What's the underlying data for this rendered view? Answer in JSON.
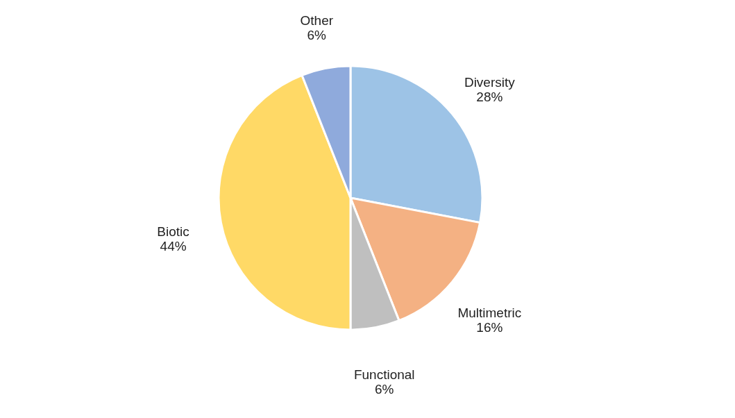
{
  "chart_data": {
    "type": "pie",
    "categories": [
      "Diversity",
      "Multimetric",
      "Functional",
      "Biotic",
      "Other"
    ],
    "values": [
      28,
      16,
      6,
      44,
      6
    ],
    "value_labels": [
      "28%",
      "16%",
      "6%",
      "44%",
      "6%"
    ],
    "colors": [
      "#9dc3e6",
      "#f4b183",
      "#bfbfbf",
      "#ffd966",
      "#8faadc"
    ],
    "legend": false
  }
}
